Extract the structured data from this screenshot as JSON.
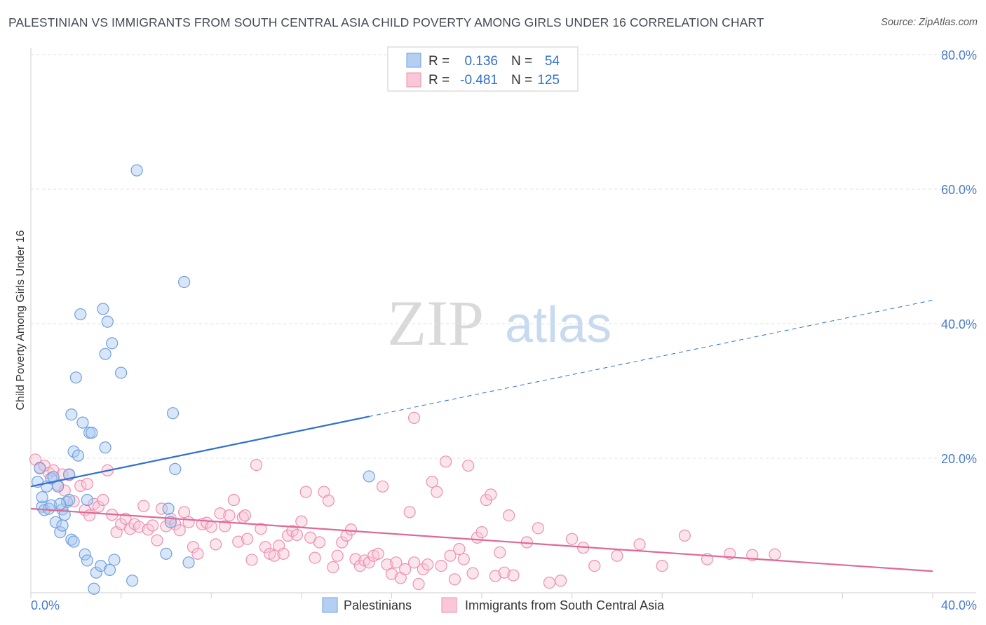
{
  "title": "PALESTINIAN VS IMMIGRANTS FROM SOUTH CENTRAL ASIA CHILD POVERTY AMONG GIRLS UNDER 16 CORRELATION CHART",
  "source": "Source: ZipAtlas.com",
  "watermark": {
    "zip": "ZIP",
    "atlas": "atlas"
  },
  "chart_data": {
    "type": "scatter",
    "title": "PALESTINIAN VS IMMIGRANTS FROM SOUTH CENTRAL ASIA CHILD POVERTY AMONG GIRLS UNDER 16 CORRELATION CHART",
    "xlabel": "",
    "ylabel": "Child Poverty Among Girls Under 16",
    "xlim": [
      0,
      40
    ],
    "ylim": [
      0,
      80
    ],
    "x_tick_labels": [
      "0.0%",
      "40.0%"
    ],
    "y_ticks": [
      20,
      40,
      60,
      80
    ],
    "y_tick_labels": [
      "20.0%",
      "40.0%",
      "60.0%",
      "80.0%"
    ],
    "grid": true,
    "legend_top": [
      {
        "r_label": "R =",
        "r_value": "0.136",
        "n_label": "N =",
        "n_value": "54"
      },
      {
        "r_label": "R =",
        "r_value": "-0.481",
        "n_label": "N =",
        "n_value": "125"
      }
    ],
    "series": [
      {
        "name": "Palestinians",
        "color": "#6fa0e0",
        "fill": "#a9c7f0",
        "line_color": "#2e6fd1",
        "trend": {
          "x0": 0,
          "y0": 15.8,
          "x1": 15,
          "y1": 26.2,
          "x_dashed_end": 40,
          "y_dashed_end": 43.5
        },
        "points": [
          [
            0.3,
            16.5
          ],
          [
            0.5,
            12.8
          ],
          [
            0.5,
            14.2
          ],
          [
            0.6,
            12.3
          ],
          [
            0.7,
            15.8
          ],
          [
            0.8,
            12.5
          ],
          [
            0.9,
            13.0
          ],
          [
            0.9,
            17.0
          ],
          [
            1.0,
            17.2
          ],
          [
            1.1,
            10.5
          ],
          [
            1.2,
            15.8
          ],
          [
            1.3,
            9.0
          ],
          [
            1.4,
            10.0
          ],
          [
            1.4,
            12.4
          ],
          [
            1.5,
            11.6
          ],
          [
            1.6,
            13.5
          ],
          [
            1.7,
            17.6
          ],
          [
            1.7,
            13.8
          ],
          [
            1.8,
            7.9
          ],
          [
            1.9,
            7.6
          ],
          [
            1.8,
            26.5
          ],
          [
            1.9,
            21.0
          ],
          [
            2.0,
            32.0
          ],
          [
            2.1,
            20.4
          ],
          [
            2.2,
            41.4
          ],
          [
            2.3,
            25.3
          ],
          [
            2.4,
            5.7
          ],
          [
            2.5,
            4.8
          ],
          [
            2.5,
            13.8
          ],
          [
            2.6,
            23.8
          ],
          [
            2.7,
            23.8
          ],
          [
            2.9,
            3.0
          ],
          [
            3.1,
            4.0
          ],
          [
            3.2,
            42.2
          ],
          [
            3.3,
            35.5
          ],
          [
            3.3,
            21.6
          ],
          [
            3.4,
            40.3
          ],
          [
            3.5,
            3.4
          ],
          [
            3.6,
            37.1
          ],
          [
            3.7,
            4.9
          ],
          [
            4.0,
            32.7
          ],
          [
            4.5,
            1.8
          ],
          [
            4.7,
            62.8
          ],
          [
            6.0,
            5.8
          ],
          [
            6.1,
            12.5
          ],
          [
            6.2,
            10.5
          ],
          [
            6.3,
            26.7
          ],
          [
            6.4,
            18.4
          ],
          [
            6.8,
            46.2
          ],
          [
            7.0,
            4.5
          ],
          [
            15.0,
            17.3
          ],
          [
            2.8,
            0.6
          ],
          [
            1.3,
            13.2
          ],
          [
            0.4,
            18.5
          ]
        ]
      },
      {
        "name": "Immigrants from South Central Asia",
        "color": "#ee8fb0",
        "fill": "#f7c5d7",
        "line_color": "#e06895",
        "trend": {
          "x0": 0,
          "y0": 12.5,
          "x1": 40,
          "y1": 3.2
        },
        "points": [
          [
            0.2,
            19.8
          ],
          [
            0.4,
            18.6
          ],
          [
            0.6,
            18.9
          ],
          [
            0.8,
            17.8
          ],
          [
            1.0,
            18.2
          ],
          [
            1.2,
            16.0
          ],
          [
            1.4,
            17.6
          ],
          [
            1.5,
            15.2
          ],
          [
            1.7,
            17.5
          ],
          [
            1.9,
            13.6
          ],
          [
            2.2,
            15.9
          ],
          [
            2.4,
            12.3
          ],
          [
            2.5,
            16.2
          ],
          [
            2.6,
            11.5
          ],
          [
            2.8,
            13.2
          ],
          [
            3.0,
            12.8
          ],
          [
            3.2,
            13.8
          ],
          [
            3.4,
            18.2
          ],
          [
            3.6,
            11.6
          ],
          [
            3.8,
            9.0
          ],
          [
            4.0,
            10.2
          ],
          [
            4.2,
            11.0
          ],
          [
            4.4,
            9.5
          ],
          [
            4.6,
            10.2
          ],
          [
            4.8,
            9.8
          ],
          [
            5.0,
            12.9
          ],
          [
            5.2,
            9.4
          ],
          [
            5.4,
            10.0
          ],
          [
            5.6,
            7.8
          ],
          [
            5.8,
            12.5
          ],
          [
            6.0,
            9.9
          ],
          [
            6.2,
            11.0
          ],
          [
            6.4,
            10.2
          ],
          [
            6.6,
            9.3
          ],
          [
            6.8,
            12.0
          ],
          [
            7.0,
            10.5
          ],
          [
            7.2,
            6.8
          ],
          [
            7.4,
            5.8
          ],
          [
            7.6,
            10.2
          ],
          [
            7.8,
            10.4
          ],
          [
            8.0,
            9.8
          ],
          [
            8.2,
            7.2
          ],
          [
            8.4,
            11.8
          ],
          [
            8.6,
            9.9
          ],
          [
            8.8,
            11.5
          ],
          [
            9.0,
            13.8
          ],
          [
            9.2,
            7.6
          ],
          [
            9.4,
            11.2
          ],
          [
            9.6,
            8.0
          ],
          [
            9.8,
            4.9
          ],
          [
            10.0,
            19.0
          ],
          [
            10.2,
            9.5
          ],
          [
            10.4,
            6.8
          ],
          [
            10.6,
            5.8
          ],
          [
            10.8,
            5.5
          ],
          [
            11.0,
            7.0
          ],
          [
            11.2,
            5.8
          ],
          [
            11.4,
            8.5
          ],
          [
            11.6,
            9.2
          ],
          [
            11.8,
            8.6
          ],
          [
            12.0,
            10.6
          ],
          [
            12.2,
            15.0
          ],
          [
            12.4,
            8.2
          ],
          [
            12.6,
            5.2
          ],
          [
            12.8,
            7.5
          ],
          [
            13.0,
            15.0
          ],
          [
            13.2,
            13.7
          ],
          [
            13.4,
            3.8
          ],
          [
            13.6,
            5.5
          ],
          [
            13.8,
            7.5
          ],
          [
            14.0,
            8.5
          ],
          [
            14.2,
            9.4
          ],
          [
            14.4,
            5.0
          ],
          [
            14.6,
            4.0
          ],
          [
            14.8,
            4.8
          ],
          [
            15.0,
            4.5
          ],
          [
            15.2,
            5.5
          ],
          [
            15.4,
            5.8
          ],
          [
            15.6,
            15.8
          ],
          [
            15.8,
            4.2
          ],
          [
            16.0,
            2.8
          ],
          [
            16.2,
            4.5
          ],
          [
            16.4,
            2.2
          ],
          [
            16.6,
            3.5
          ],
          [
            16.8,
            12.0
          ],
          [
            17.0,
            4.5
          ],
          [
            17.2,
            1.3
          ],
          [
            17.4,
            3.5
          ],
          [
            17.6,
            4.2
          ],
          [
            17.8,
            16.5
          ],
          [
            18.0,
            15.0
          ],
          [
            18.2,
            4.0
          ],
          [
            18.4,
            19.5
          ],
          [
            18.6,
            5.5
          ],
          [
            18.8,
            2.0
          ],
          [
            19.0,
            6.5
          ],
          [
            19.2,
            5.0
          ],
          [
            19.4,
            18.9
          ],
          [
            19.6,
            2.9
          ],
          [
            19.8,
            8.2
          ],
          [
            20.0,
            9.0
          ],
          [
            20.2,
            13.8
          ],
          [
            20.4,
            14.6
          ],
          [
            20.6,
            2.5
          ],
          [
            20.8,
            6.0
          ],
          [
            21.0,
            3.0
          ],
          [
            21.2,
            11.5
          ],
          [
            21.4,
            2.6
          ],
          [
            22.0,
            7.5
          ],
          [
            22.5,
            9.6
          ],
          [
            23.0,
            1.5
          ],
          [
            23.5,
            1.8
          ],
          [
            24.0,
            8.0
          ],
          [
            24.5,
            6.7
          ],
          [
            25.0,
            4.0
          ],
          [
            26.0,
            5.5
          ],
          [
            27.0,
            7.2
          ],
          [
            28.0,
            4.0
          ],
          [
            29.0,
            8.5
          ],
          [
            30.0,
            5.0
          ],
          [
            31.0,
            5.8
          ],
          [
            32.0,
            5.6
          ],
          [
            33.0,
            5.7
          ],
          [
            17.0,
            26.0
          ],
          [
            9.5,
            11.5
          ]
        ]
      }
    ]
  },
  "legend_bottom": [
    "Palestinians",
    "Immigrants from South Central Asia"
  ]
}
